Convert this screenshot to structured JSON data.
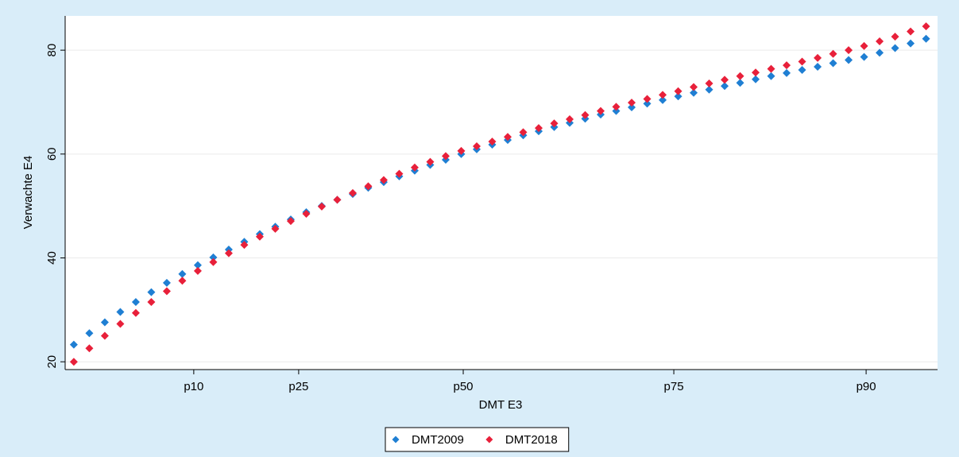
{
  "chart_data": {
    "type": "scatter",
    "x_label": "DMT E3",
    "y_label": "Verwachte E4",
    "x": [
      1,
      2,
      3,
      4,
      5,
      6,
      7,
      8,
      9,
      10,
      11,
      12,
      13,
      14,
      15,
      16,
      17,
      18,
      19,
      20,
      21,
      22,
      23,
      24,
      25,
      26,
      27,
      28,
      29,
      30,
      31,
      32,
      33,
      34,
      35,
      36,
      37,
      38,
      39,
      40,
      41,
      42,
      43,
      44,
      45,
      46,
      47,
      48,
      49,
      50,
      51,
      52,
      53,
      54,
      55,
      56
    ],
    "series": [
      {
        "name": "DMT2009",
        "color": "#1f7fd3",
        "values": [
          23.3,
          25.5,
          27.6,
          29.6,
          31.5,
          33.4,
          35.2,
          36.9,
          38.6,
          40.1,
          41.6,
          43.1,
          44.6,
          46.0,
          47.4,
          48.8,
          50.0,
          51.2,
          52.3,
          53.5,
          54.6,
          55.7,
          56.8,
          57.9,
          58.9,
          60.0,
          60.9,
          61.8,
          62.7,
          63.6,
          64.4,
          65.2,
          66.0,
          66.8,
          67.6,
          68.3,
          69.0,
          69.7,
          70.4,
          71.1,
          71.8,
          72.4,
          73.1,
          73.7,
          74.4,
          75.0,
          75.6,
          76.2,
          76.8,
          77.5,
          78.1,
          78.7,
          79.5,
          80.4,
          81.3,
          82.2
        ]
      },
      {
        "name": "DMT2018",
        "color": "#e8203a",
        "values": [
          20.0,
          22.6,
          25.0,
          27.3,
          29.4,
          31.5,
          33.6,
          35.6,
          37.5,
          39.2,
          40.9,
          42.5,
          44.1,
          45.6,
          47.1,
          48.5,
          49.9,
          51.2,
          52.5,
          53.8,
          55.0,
          56.2,
          57.4,
          58.5,
          59.6,
          60.6,
          61.5,
          62.4,
          63.3,
          64.2,
          65.0,
          65.9,
          66.7,
          67.5,
          68.3,
          69.1,
          69.9,
          70.6,
          71.4,
          72.1,
          72.9,
          73.6,
          74.3,
          75.0,
          75.7,
          76.4,
          77.1,
          77.8,
          78.5,
          79.3,
          80.0,
          80.8,
          81.7,
          82.6,
          83.6,
          84.6
        ]
      }
    ],
    "xlim": [
      0.44,
      56.74
    ],
    "xticks": [
      {
        "value": 8.74,
        "label": "p10"
      },
      {
        "value": 15.51,
        "label": "p25"
      },
      {
        "value": 26.13,
        "label": "p50"
      },
      {
        "value": 39.72,
        "label": "p75"
      },
      {
        "value": 52.13,
        "label": "p90"
      }
    ],
    "ylim": [
      18.5,
      86.6
    ],
    "yticks": [
      20,
      40,
      60,
      80
    ],
    "grid": true,
    "legend": "bottom"
  }
}
